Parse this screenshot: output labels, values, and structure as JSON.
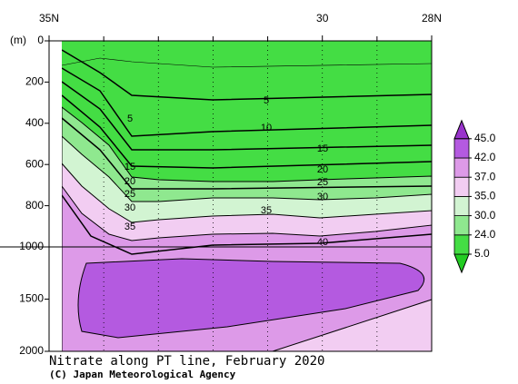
{
  "chart_data": {
    "type": "contour",
    "title": "Nitrate along PT line, February 2020",
    "credit": "(C) Japan Meteorological Agency",
    "y_label": "(m)",
    "xlim": [
      35,
      28
    ],
    "xticks": [
      {
        "value": 35,
        "label": "35N"
      },
      30,
      {
        "value": 28,
        "label": "28N"
      }
    ],
    "minor_xticks": [
      34,
      33,
      32,
      31,
      29
    ],
    "ylim": [
      0,
      2000
    ],
    "ybreak": 1000,
    "yticks": [
      0,
      200,
      400,
      600,
      800,
      1000,
      1500,
      2000
    ],
    "levels": [
      {
        "value": 5,
        "label": "5.0"
      },
      {
        "value": 24,
        "label": "24.0"
      },
      {
        "value": 30,
        "label": "30.0"
      },
      {
        "value": 35,
        "label": "35.0"
      },
      {
        "value": 37,
        "label": "37.0"
      },
      {
        "value": 42,
        "label": "42.0"
      },
      {
        "value": 45,
        "label": "45.0"
      }
    ],
    "colors": [
      "#22cc22",
      "#44dd44",
      "#8fe88f",
      "#d2f4d2",
      "#f2cdf2",
      "#dd9ae8",
      "#b45ae0",
      "#9933cc"
    ],
    "contour_labels": [
      5,
      5,
      10,
      15,
      15,
      20,
      20,
      25,
      25,
      30,
      30,
      35,
      35,
      40
    ]
  }
}
